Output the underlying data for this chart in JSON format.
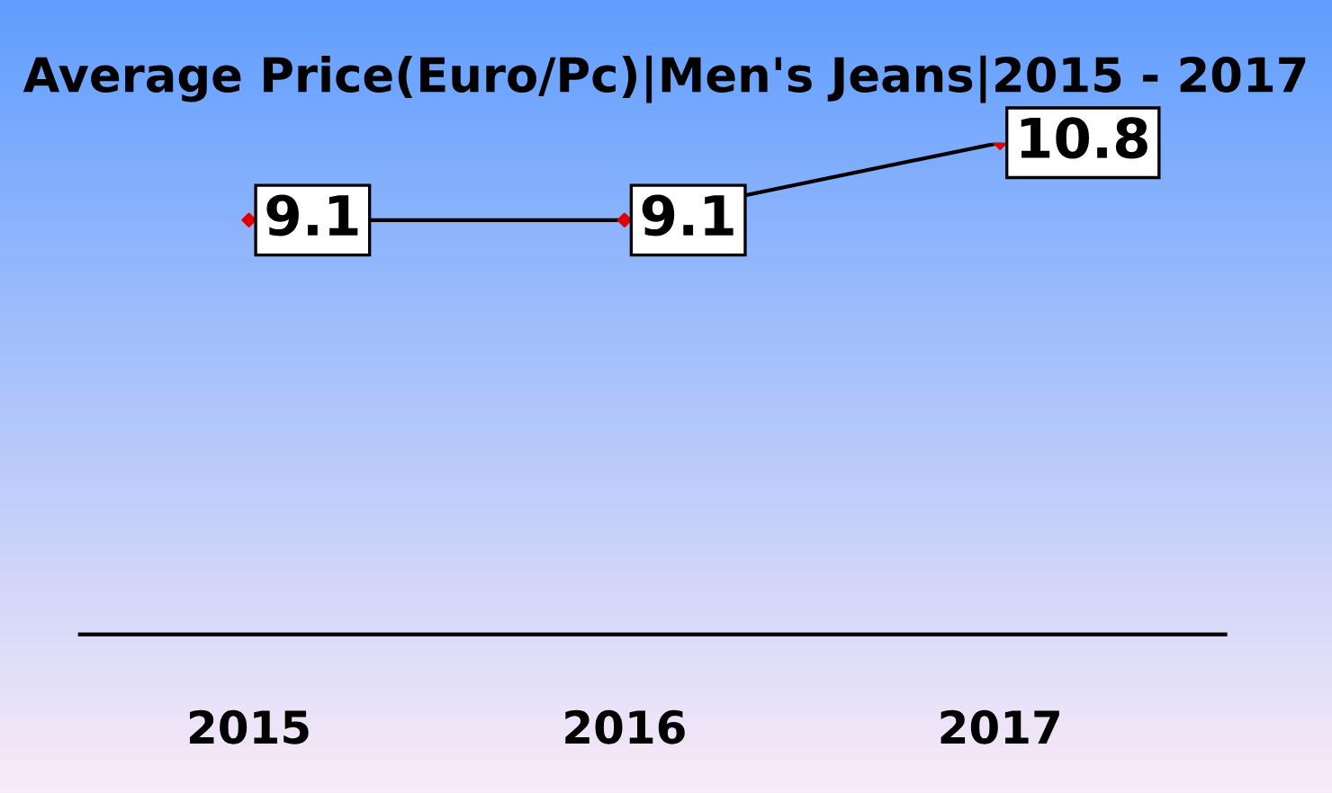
{
  "chart_data": {
    "type": "line",
    "title": "Average Price(Euro/Pc)|Men's Jeans|2015 - 2017",
    "categories": [
      "2015",
      "2016",
      "2017"
    ],
    "series": [
      {
        "color": "#000000",
        "colors": [
          "#e00000",
          "#e00000",
          "#e00000"
        ],
        "values": [
          9.1,
          9.1,
          10.8
        ]
      }
    ],
    "tick_labels": "x",
    "data_labels": true,
    "marker": "diamond",
    "line_style": "solid"
  }
}
